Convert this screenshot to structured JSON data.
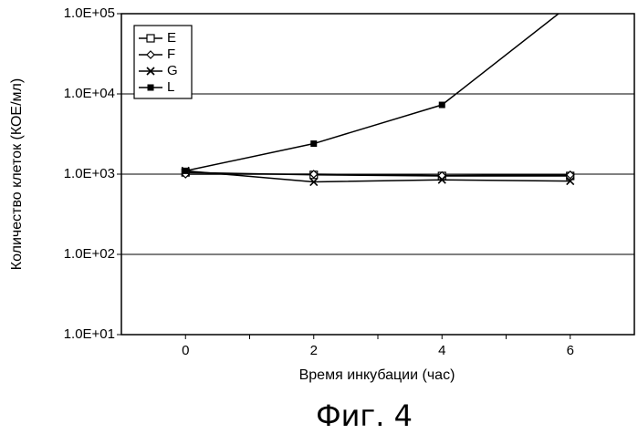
{
  "chart_data": {
    "type": "line",
    "x": [
      0,
      2,
      4,
      6
    ],
    "xticks": [
      "0",
      "2",
      "4",
      "6"
    ],
    "xlabel": "Время инкубации (час)",
    "ylabel": "Количество клеток (КОЕ/мл)",
    "yscale": "log",
    "ylim": [
      10,
      100000
    ],
    "xlim": [
      -1,
      7
    ],
    "yticks": [
      "1.0E+01",
      "1.0E+02",
      "1.0E+03",
      "1.0E+04",
      "1.0E+05"
    ],
    "grid": "horizontal",
    "legend_position": "top-left",
    "series": [
      {
        "name": "E",
        "marker": "square-open",
        "values": [
          1050,
          980,
          950,
          950
        ]
      },
      {
        "name": "F",
        "marker": "diamond-open",
        "values": [
          1000,
          1000,
          960,
          980
        ]
      },
      {
        "name": "G",
        "marker": "x",
        "values": [
          1100,
          800,
          850,
          820
        ]
      },
      {
        "name": "L",
        "marker": "square-filled",
        "values": [
          1100,
          2400,
          7300,
          130000
        ]
      }
    ]
  },
  "caption": "Фиг. 4"
}
